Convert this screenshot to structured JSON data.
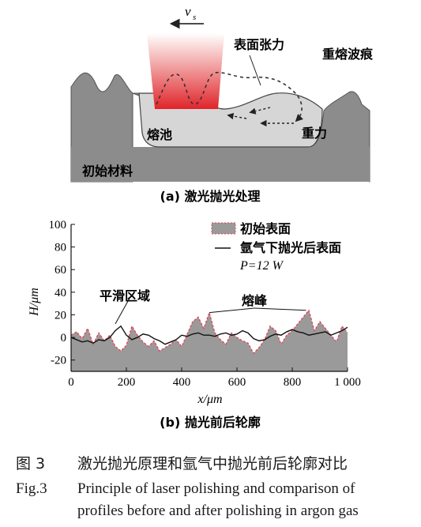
{
  "panel_a": {
    "speed_label": "v",
    "speed_sub": "s",
    "surface_tension": "表面张力",
    "remelt_ripple": "重熔波痕",
    "melt_pool": "熔池",
    "gravity": "重力",
    "base_material": "初始材料",
    "subcaption": "(a) 激光抛光处理"
  },
  "panel_b": {
    "subcaption": "(b) 抛光前后轮廓",
    "smooth_region": "平滑区域",
    "melt_peak": "熔峰",
    "xlabel": "x/μm",
    "ylabel": "H/μm"
  },
  "chart_data": {
    "type": "area",
    "xlabel": "x/μm",
    "ylabel": "H/μm",
    "xlim": [
      0,
      1000
    ],
    "ylim": [
      -30,
      100
    ],
    "x_ticks": [
      "0",
      "200",
      "400",
      "600",
      "800",
      "1 000"
    ],
    "y_ticks": [
      "100",
      "80",
      "60",
      "40",
      "20",
      "0",
      "-20"
    ],
    "grid": false,
    "legend_position": "top-right",
    "colors": {
      "initial_fill": "#9a9a9a",
      "initial_edge": "#e0455a",
      "polished_line": "#111111"
    },
    "legend": {
      "initial": "初始表面",
      "polished": "氩气下抛光后表面",
      "power": "P=12 W"
    },
    "x": [
      0,
      20,
      40,
      60,
      80,
      100,
      120,
      140,
      160,
      180,
      200,
      220,
      240,
      260,
      280,
      300,
      320,
      340,
      360,
      380,
      400,
      420,
      440,
      460,
      480,
      500,
      520,
      540,
      560,
      580,
      600,
      620,
      640,
      660,
      680,
      700,
      720,
      740,
      760,
      780,
      800,
      820,
      840,
      860,
      880,
      900,
      920,
      940,
      960,
      980,
      1000
    ],
    "series": [
      {
        "name": "初始表面",
        "values": [
          2,
          5,
          -1,
          8,
          -6,
          4,
          -3,
          2,
          -8,
          -12,
          -7,
          10,
          2,
          -4,
          -8,
          -3,
          -12,
          -9,
          -6,
          -2,
          -8,
          3,
          14,
          18,
          8,
          22,
          4,
          -2,
          -6,
          4,
          0,
          -3,
          -5,
          -14,
          -9,
          -2,
          10,
          6,
          -6,
          2,
          6,
          12,
          18,
          24,
          6,
          14,
          8,
          2,
          -4,
          10,
          4
        ]
      },
      {
        "name": "氩气下抛光后表面",
        "values": [
          0,
          -2,
          -4,
          -3,
          -5,
          -2,
          -3,
          0,
          6,
          10,
          2,
          -2,
          0,
          3,
          2,
          -1,
          -3,
          -6,
          -4,
          -2,
          2,
          1,
          3,
          4,
          2,
          2,
          1,
          3,
          4,
          2,
          3,
          6,
          4,
          -1,
          -3,
          -2,
          1,
          3,
          2,
          5,
          7,
          5,
          4,
          2,
          3,
          4,
          5,
          2,
          4,
          6,
          9
        ]
      }
    ],
    "annotations": [
      {
        "text": "平滑区域",
        "target_x": 160,
        "target_y": 12
      },
      {
        "text": "熔峰",
        "target_x": 500,
        "target_y": 22
      },
      {
        "text": "熔峰",
        "target_x": 850,
        "target_y": 24
      }
    ]
  },
  "caption": {
    "cn_no": "图 3",
    "cn_text": "激光抛光原理和氩气中抛光前后轮廓对比",
    "en_no": "Fig.3",
    "en_line1": "Principle of laser polishing and comparison of",
    "en_line2": "profiles before and after polishing in argon gas"
  }
}
